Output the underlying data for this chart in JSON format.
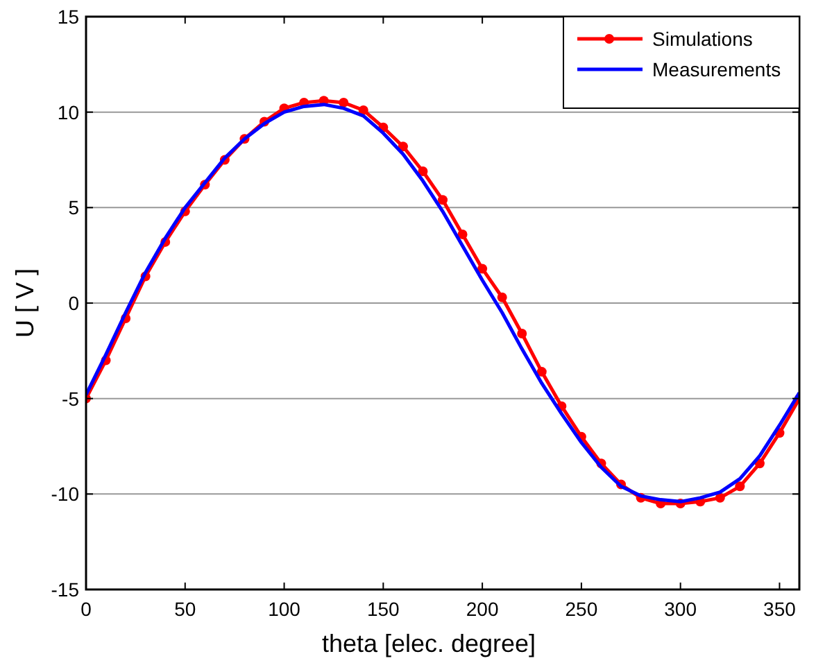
{
  "chart_data": {
    "type": "line",
    "xlabel": "theta  [elec. degree]",
    "ylabel": "U  [ V ]",
    "x": [
      0,
      10,
      20,
      30,
      40,
      50,
      60,
      70,
      80,
      90,
      100,
      110,
      120,
      130,
      140,
      150,
      160,
      170,
      180,
      190,
      200,
      210,
      220,
      230,
      240,
      250,
      260,
      270,
      280,
      290,
      300,
      310,
      320,
      330,
      340,
      350,
      360
    ],
    "series": [
      {
        "name": "Simulations",
        "color": "#ff0000",
        "marker": "circle",
        "values": [
          -5,
          -3.0,
          -0.8,
          1.4,
          3.2,
          4.8,
          6.2,
          7.5,
          8.6,
          9.5,
          10.2,
          10.5,
          10.6,
          10.5,
          10.1,
          9.2,
          8.2,
          6.9,
          5.4,
          3.6,
          1.8,
          0.3,
          -1.6,
          -3.6,
          -5.4,
          -7.0,
          -8.4,
          -9.5,
          -10.2,
          -10.5,
          -10.5,
          -10.4,
          -10.2,
          -9.6,
          -8.4,
          -6.8,
          -5.0
        ]
      },
      {
        "name": "Measurements",
        "color": "#0000ff",
        "marker": "none",
        "values": [
          -4.8,
          -2.7,
          -0.5,
          1.6,
          3.4,
          5.0,
          6.3,
          7.6,
          8.6,
          9.4,
          10.0,
          10.3,
          10.4,
          10.2,
          9.8,
          8.9,
          7.8,
          6.4,
          4.8,
          3.0,
          1.2,
          -0.5,
          -2.4,
          -4.2,
          -5.8,
          -7.3,
          -8.6,
          -9.6,
          -10.1,
          -10.3,
          -10.4,
          -10.2,
          -9.9,
          -9.2,
          -8.0,
          -6.4,
          -4.7
        ]
      }
    ],
    "xlim": [
      0,
      360
    ],
    "xticks": [
      0,
      50,
      100,
      150,
      200,
      250,
      300,
      350
    ],
    "ylim": [
      -15,
      15
    ],
    "yticks": [
      -15,
      -10,
      -5,
      0,
      5,
      10,
      15
    ],
    "grid": "y",
    "legend": "top right"
  }
}
